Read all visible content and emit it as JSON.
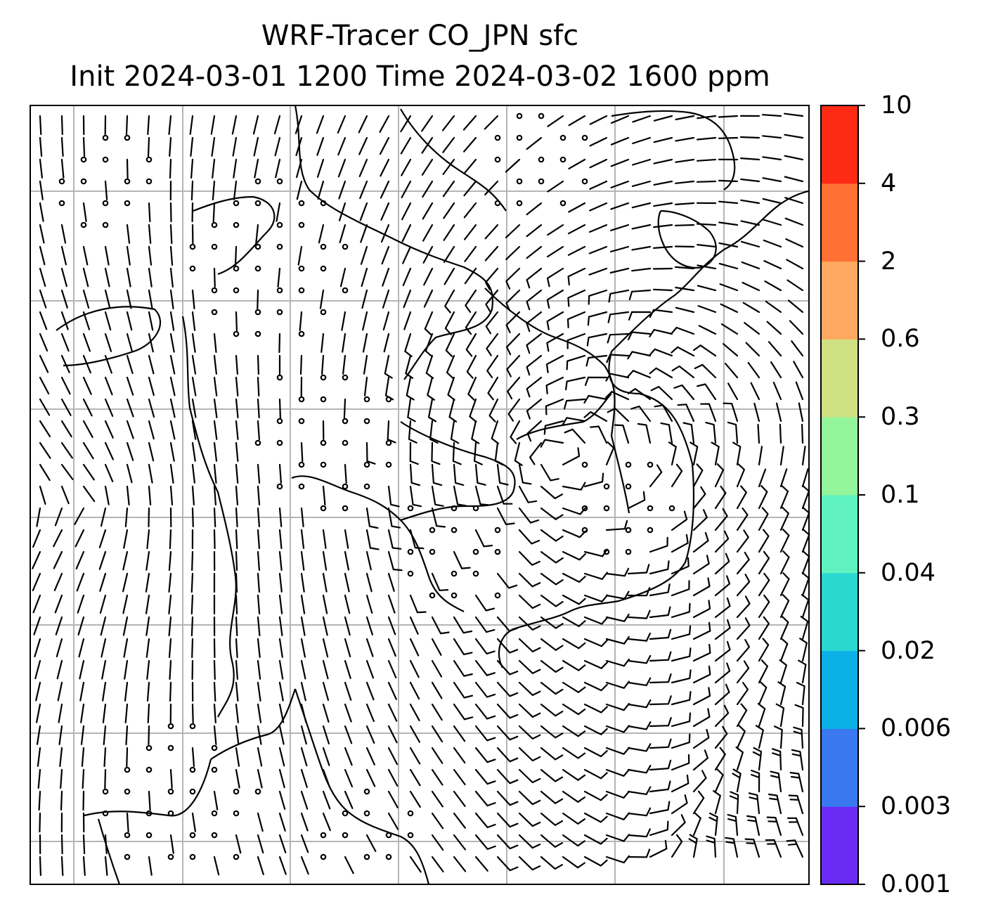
{
  "title": {
    "line1": "WRF-Tracer CO_JPN sfc",
    "line2": "Init 2024-03-01 1200 Time 2024-03-02 1600 ppm"
  },
  "colorbar": {
    "levels": [
      "0.001",
      "0.003",
      "0.006",
      "0.02",
      "0.04",
      "0.1",
      "0.3",
      "0.6",
      "2",
      "4",
      "10"
    ],
    "colors": [
      "#6a2cf5",
      "#3a78f0",
      "#0bb0e6",
      "#2ad8d0",
      "#5ff2c0",
      "#94f69a",
      "#d0e184",
      "#fdaa60",
      "#fe7034",
      "#fe2a14"
    ]
  },
  "map": {
    "gridlines": true,
    "wind_barbs": true,
    "coastlines": true,
    "tracer_contours": "none visible"
  }
}
